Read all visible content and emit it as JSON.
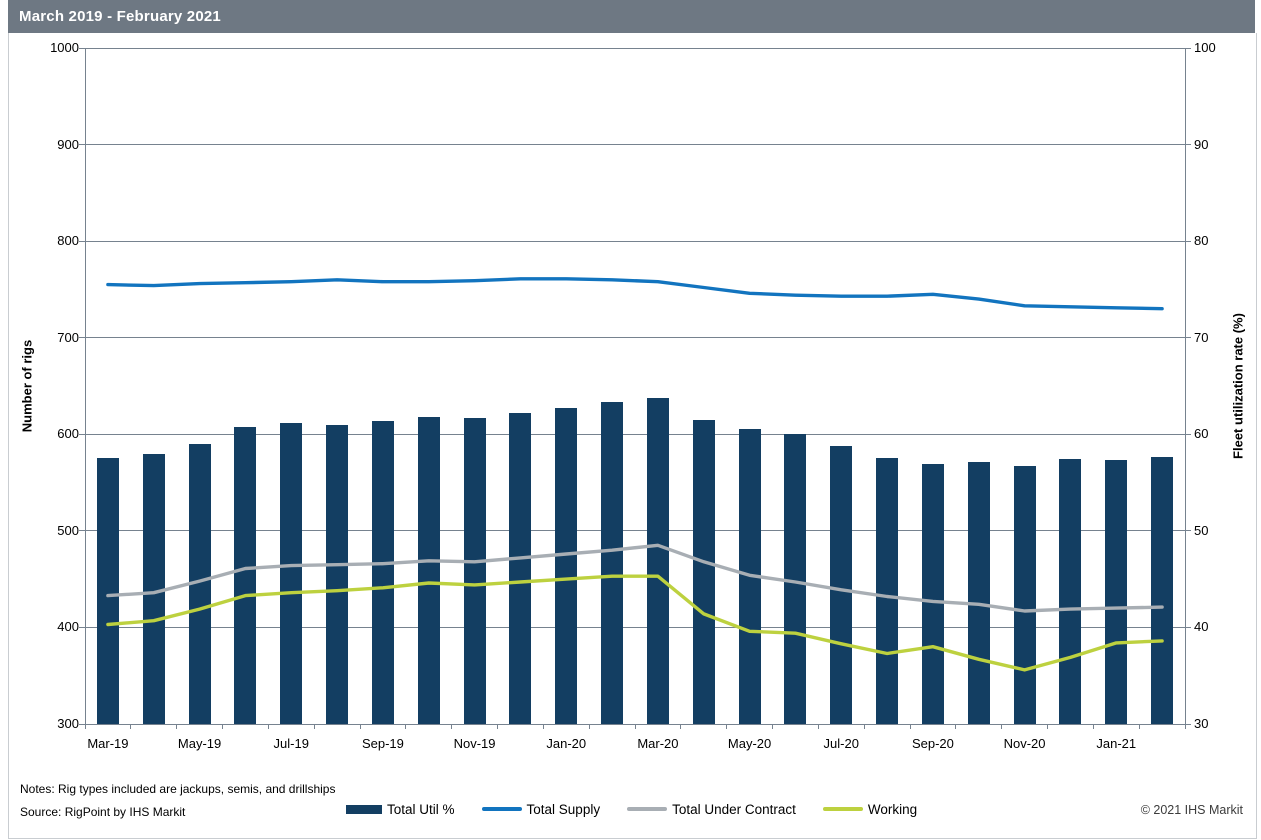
{
  "title": "March 2019 - February 2021",
  "notes": "Notes: Rig types included are jackups, semis, and drillships",
  "source": "Source: RigPoint by IHS Markit",
  "copyright": "© 2021 IHS Markit",
  "left_axis": {
    "title": "Number of rigs",
    "min": 300,
    "max": 1000,
    "step": 100
  },
  "right_axis": {
    "title": "Fleet utilization rate (%)",
    "min": 30,
    "max": 100,
    "step": 10
  },
  "colors": {
    "title_bar": "#6E7883",
    "bar": "#133E62",
    "supply_line": "#1274BF",
    "contract_line": "#A8AEB4",
    "working_line": "#BDD13F",
    "grid": "#76828F"
  },
  "legend": [
    {
      "label": "Total Util %",
      "type": "bar",
      "color": "#133E62"
    },
    {
      "label": "Total Supply",
      "type": "line",
      "color": "#1274BF"
    },
    {
      "label": "Total Under Contract",
      "type": "line",
      "color": "#A8AEB4"
    },
    {
      "label": "Working",
      "type": "line",
      "color": "#BDD13F"
    }
  ],
  "chart_data": {
    "type": "bar",
    "subtype": "combo bar + 3 lines, dual y-axis",
    "title": "March 2019 - February 2021",
    "xlabel": "",
    "ylabel_left": "Number of rigs",
    "ylabel_right": "Fleet utilization rate (%)",
    "left_ylim": [
      300,
      1000
    ],
    "right_ylim": [
      30,
      100
    ],
    "grid": true,
    "legend_position": "bottom",
    "categories": [
      "Mar-19",
      "Apr-19",
      "May-19",
      "Jun-19",
      "Jul-19",
      "Aug-19",
      "Sep-19",
      "Oct-19",
      "Nov-19",
      "Dec-19",
      "Jan-20",
      "Feb-20",
      "Mar-20",
      "Apr-20",
      "May-20",
      "Jun-20",
      "Jul-20",
      "Aug-20",
      "Sep-20",
      "Oct-20",
      "Nov-20",
      "Dec-20",
      "Jan-21",
      "Feb-21"
    ],
    "x_tick_labels": [
      "Mar-19",
      "May-19",
      "Jul-19",
      "Sep-19",
      "Nov-19",
      "Jan-20",
      "Mar-20",
      "May-20",
      "Jul-20",
      "Sep-20",
      "Nov-20",
      "Jan-21"
    ],
    "series": [
      {
        "name": "Total Util %",
        "type": "bar",
        "axis": "right",
        "unit": "%",
        "values": [
          57.5,
          58.0,
          59.0,
          60.8,
          61.2,
          61.0,
          61.4,
          61.8,
          61.7,
          62.2,
          62.7,
          63.3,
          63.8,
          61.5,
          60.5,
          60.0,
          58.8,
          57.5,
          56.9,
          57.1,
          56.7,
          57.4,
          57.3,
          57.6
        ]
      },
      {
        "name": "Total Supply",
        "type": "line",
        "axis": "left",
        "unit": "rigs",
        "values": [
          755,
          754,
          756,
          757,
          758,
          760,
          758,
          758,
          759,
          761,
          761,
          760,
          758,
          752,
          746,
          744,
          743,
          743,
          745,
          740,
          733,
          732,
          731,
          730
        ]
      },
      {
        "name": "Total Under Contract",
        "type": "line",
        "axis": "left",
        "unit": "rigs",
        "values": [
          433,
          436,
          448,
          461,
          464,
          465,
          466,
          469,
          468,
          472,
          476,
          480,
          485,
          468,
          454,
          447,
          439,
          432,
          427,
          424,
          417,
          419,
          420,
          421
        ]
      },
      {
        "name": "Working",
        "type": "line",
        "axis": "left",
        "unit": "rigs",
        "values": [
          403,
          407,
          419,
          433,
          436,
          438,
          441,
          446,
          444,
          447,
          450,
          453,
          453,
          414,
          396,
          394,
          383,
          373,
          380,
          367,
          356,
          369,
          384,
          386
        ]
      }
    ]
  }
}
